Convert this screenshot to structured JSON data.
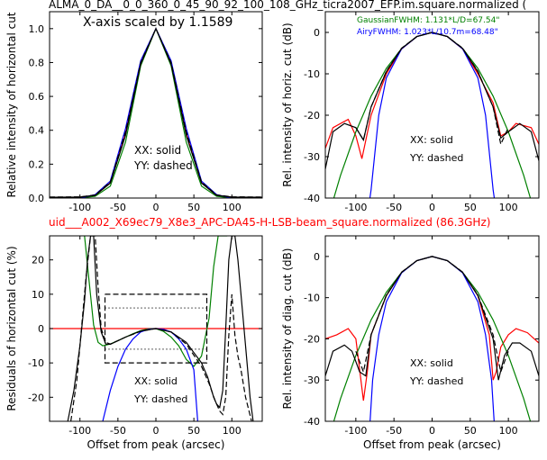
{
  "figure": {
    "title_top": "ALMA_0_DA__0_0_360_0_45_90_92_100_108_GHz_ticra2007_EFP.im.square.normalized (",
    "title_mid": "uid___A002_X69ec79_X8e3_APC-DA45-H-LSB-beam_square.normalized (86.3GHz)",
    "title_mid_color": "#ff0000"
  },
  "chart_data": [
    {
      "id": "p1",
      "type": "line",
      "ylabel": "Relative intensity of horizontal cut",
      "xlabel": "",
      "xlim": [
        -140,
        140
      ],
      "ylim": [
        0,
        1.1
      ],
      "xticks": [
        -100,
        -50,
        0,
        50,
        100
      ],
      "yticks": [
        0.0,
        0.2,
        0.4,
        0.6,
        0.8,
        1.0
      ],
      "annotations": [
        "X-axis scaled by 1.1589",
        "XX: solid",
        "YY: dashed"
      ],
      "series": [
        {
          "style": "model",
          "color": "#ff0000",
          "x": [
            -140,
            -100,
            -80,
            -60,
            -40,
            -20,
            0,
            20,
            40,
            60,
            80,
            100,
            140
          ],
          "y": [
            0.005,
            0.005,
            0.015,
            0.09,
            0.38,
            0.8,
            1.0,
            0.8,
            0.38,
            0.09,
            0.015,
            0.005,
            0.005
          ]
        },
        {
          "style": "gaussian",
          "color": "#008000",
          "x": [
            -140,
            -100,
            -80,
            -60,
            -40,
            -20,
            0,
            20,
            40,
            60,
            80,
            100,
            140
          ],
          "y": [
            0.0,
            0.001,
            0.01,
            0.07,
            0.33,
            0.78,
            1.0,
            0.78,
            0.33,
            0.07,
            0.01,
            0.001,
            0.0
          ]
        },
        {
          "style": "airy",
          "color": "#0000ff",
          "x": [
            -140,
            -100,
            -80,
            -60,
            -40,
            -20,
            0,
            20,
            40,
            60,
            80,
            100,
            140
          ],
          "y": [
            0.0,
            0.0,
            0.02,
            0.1,
            0.41,
            0.81,
            1.0,
            0.81,
            0.41,
            0.1,
            0.02,
            0.0,
            0.0
          ]
        },
        {
          "style": "XX",
          "color": "#000000",
          "x": [
            -140,
            -100,
            -80,
            -60,
            -40,
            -20,
            0,
            20,
            40,
            60,
            80,
            100,
            140
          ],
          "y": [
            0.005,
            0.006,
            0.016,
            0.088,
            0.37,
            0.79,
            1.0,
            0.79,
            0.37,
            0.088,
            0.016,
            0.006,
            0.005
          ]
        },
        {
          "style": "YY",
          "color": "#000000",
          "dashed": true,
          "x": [
            -140,
            -100,
            -80,
            -60,
            -40,
            -20,
            0,
            20,
            40,
            60,
            80,
            100,
            140
          ],
          "y": [
            0.006,
            0.007,
            0.018,
            0.095,
            0.39,
            0.8,
            1.0,
            0.8,
            0.39,
            0.095,
            0.018,
            0.007,
            0.006
          ]
        }
      ]
    },
    {
      "id": "p2",
      "type": "line",
      "ylabel": "Rel. intensity of horiz. cut (dB)",
      "xlabel": "",
      "xlim": [
        -140,
        140
      ],
      "ylim": [
        -40,
        5
      ],
      "xticks": [
        -100,
        -50,
        0,
        50,
        100
      ],
      "yticks": [
        -40,
        -30,
        -20,
        -10,
        0
      ],
      "annotations": [
        "XX: solid",
        "YY: dashed"
      ],
      "legend": [
        {
          "text": "GaussianFWHM: 1.131*L/D=67.54\"",
          "color": "#008000"
        },
        {
          "text": "AiryFWHM: 1.023*L/10.7m=68.48\"",
          "color": "#0000ff"
        }
      ],
      "series": [
        {
          "style": "model",
          "color": "#ff0000",
          "x": [
            -140,
            -130,
            -110,
            -100,
            -92,
            -80,
            -60,
            -40,
            -20,
            0,
            20,
            40,
            60,
            80,
            90,
            100,
            110,
            130,
            140
          ],
          "y": [
            -28,
            -23,
            -21,
            -25,
            -30.5,
            -20,
            -10,
            -4,
            -1,
            0,
            -1,
            -4,
            -10,
            -17,
            -25,
            -24,
            -22,
            -23,
            -27
          ]
        },
        {
          "style": "gaussian",
          "color": "#008000",
          "x": [
            -140,
            -120,
            -100,
            -80,
            -60,
            -40,
            -20,
            0,
            20,
            40,
            60,
            80,
            100,
            120,
            140
          ],
          "y": [
            -47,
            -34.5,
            -24,
            -15.4,
            -8.7,
            -3.9,
            -1,
            0,
            -1,
            -3.9,
            -8.7,
            -15.4,
            -24,
            -34.5,
            -47
          ]
        },
        {
          "style": "airy",
          "color": "#0000ff",
          "x": [
            -83,
            -80,
            -70,
            -60,
            -40,
            -20,
            0,
            20,
            40,
            60,
            70,
            80,
            83
          ],
          "y": [
            -42,
            -38,
            -20,
            -11,
            -4,
            -1,
            0,
            -1,
            -4,
            -11,
            -20,
            -38,
            -42
          ]
        },
        {
          "style": "XX",
          "color": "#000000",
          "x": [
            -140,
            -130,
            -115,
            -100,
            -90,
            -80,
            -60,
            -40,
            -20,
            0,
            20,
            40,
            60,
            80,
            90,
            100,
            115,
            130,
            140
          ],
          "y": [
            -33,
            -24,
            -22,
            -23,
            -26,
            -18,
            -9.5,
            -3.9,
            -1,
            0,
            -1,
            -3.9,
            -9.5,
            -18,
            -25.5,
            -24,
            -22,
            -24,
            -31
          ]
        },
        {
          "style": "YY",
          "color": "#000000",
          "dashed": true,
          "x": [
            -100,
            -90,
            -80,
            -60,
            -40,
            -20,
            0,
            20,
            40,
            60,
            80,
            90,
            100
          ],
          "y": [
            -23,
            -26,
            -18,
            -9.4,
            -3.8,
            -1,
            0,
            -1,
            -3.8,
            -9.4,
            -18,
            -27,
            -23
          ]
        }
      ]
    },
    {
      "id": "p3",
      "type": "line",
      "ylabel": "Residuals of horizontal cut (%)",
      "xlabel": "Offset from peak (arcsec)",
      "xlim": [
        -140,
        140
      ],
      "ylim": [
        -27,
        27
      ],
      "xticks": [
        -100,
        -50,
        0,
        50,
        100
      ],
      "yticks": [
        -20,
        -10,
        0,
        10,
        20
      ],
      "annotations": [
        "XX: solid",
        "YY: dashed"
      ],
      "series": [
        {
          "style": "zero",
          "color": "#ff0000",
          "x": [
            -140,
            140
          ],
          "y": [
            0,
            0
          ]
        },
        {
          "style": "gaussian",
          "color": "#008000",
          "x": [
            -94,
            -88,
            -82,
            -76,
            -70,
            -60,
            -50,
            -40,
            -30,
            -20,
            -10,
            0,
            10,
            20,
            30,
            40,
            50,
            60,
            70,
            76,
            82,
            88,
            94
          ],
          "y": [
            27,
            14,
            1,
            -4,
            -5,
            -4.5,
            -3.5,
            -2.5,
            -1.5,
            -0.6,
            -0.1,
            0,
            -0.8,
            -2.5,
            -5,
            -9,
            -11,
            -8,
            3,
            18,
            27,
            27,
            27
          ]
        },
        {
          "style": "airy",
          "color": "#0000ff",
          "x": [
            -70,
            -60,
            -50,
            -40,
            -30,
            -20,
            -10,
            0,
            10,
            20,
            30,
            40,
            50,
            55
          ],
          "y": [
            -27,
            -18,
            -11,
            -6,
            -3,
            -1,
            -0.2,
            0,
            -0.2,
            -1,
            -3,
            -6,
            -12,
            -27
          ]
        },
        {
          "style": "XX",
          "color": "#000000",
          "x": [
            -116,
            -108,
            -100,
            -94,
            -90,
            -86,
            -82,
            -78,
            -72,
            -66,
            -60,
            -40,
            -20,
            0,
            20,
            40,
            50,
            60,
            64,
            68,
            72,
            76,
            80,
            84,
            88,
            92,
            96,
            100,
            104,
            108,
            116,
            124,
            128
          ],
          "y": [
            -27,
            -18,
            -5,
            8,
            20,
            27,
            27,
            10,
            -1,
            -4.5,
            -4.6,
            -2.5,
            -0.7,
            0,
            -1,
            -4,
            -7,
            -10,
            -12,
            -14,
            -17,
            -20,
            -22,
            -23,
            -18,
            0,
            20,
            27,
            27,
            20,
            0,
            -20,
            -27
          ]
        },
        {
          "style": "YY",
          "color": "#000000",
          "dashed": true,
          "x": [
            -112,
            -104,
            -98,
            -92,
            -86,
            -80,
            -76,
            -72,
            -66,
            -60,
            -40,
            -20,
            0,
            20,
            40,
            60,
            70,
            78,
            84,
            88,
            92,
            96,
            100,
            104,
            108,
            112,
            118,
            126
          ],
          "y": [
            -27,
            -15,
            0,
            15,
            27,
            27,
            12,
            0,
            -4,
            -4.5,
            -2.5,
            -0.8,
            0,
            -1,
            -4.5,
            -11,
            -16,
            -21,
            -24,
            -25,
            -20,
            -2,
            10,
            -2,
            -8,
            -12,
            -20,
            -27
          ]
        },
        {
          "style": "box",
          "color": "#000000",
          "dashed": true,
          "x": [
            -67,
            67,
            67,
            -67,
            -67
          ],
          "y": [
            10,
            10,
            -10,
            -10,
            10
          ]
        },
        {
          "style": "box-inner",
          "color": "#000000",
          "dotted": true,
          "x": [
            -67,
            67
          ],
          "y": [
            6,
            6
          ]
        },
        {
          "style": "box-inner",
          "color": "#000000",
          "dotted": true,
          "x": [
            -67,
            67
          ],
          "y": [
            -6,
            -6
          ]
        }
      ]
    },
    {
      "id": "p4",
      "type": "line",
      "ylabel": "Rel. intensity of diag. cut (dB)",
      "xlabel": "Offset from peak (arcsec)",
      "xlim": [
        -140,
        140
      ],
      "ylim": [
        -40,
        5
      ],
      "xticks": [
        -100,
        -50,
        0,
        50,
        100
      ],
      "yticks": [
        -40,
        -30,
        -20,
        -10,
        0
      ],
      "annotations": [
        "XX: solid",
        "YY: dashed"
      ],
      "series": [
        {
          "style": "model",
          "color": "#ff0000",
          "x": [
            -140,
            -125,
            -110,
            -100,
            -90,
            -85,
            -80,
            -60,
            -40,
            -20,
            0,
            20,
            40,
            60,
            75,
            80,
            84,
            90,
            100,
            110,
            125,
            140
          ],
          "y": [
            -20,
            -19,
            -17.5,
            -20,
            -35,
            -28,
            -19,
            -9.5,
            -3.9,
            -1,
            0,
            -1,
            -3.9,
            -9.5,
            -19,
            -30,
            -28,
            -22,
            -19,
            -17.5,
            -18.5,
            -21
          ]
        },
        {
          "style": "gaussian",
          "color": "#008000",
          "x": [
            -140,
            -120,
            -100,
            -80,
            -60,
            -40,
            -20,
            0,
            20,
            40,
            60,
            80,
            100,
            120,
            140
          ],
          "y": [
            -47,
            -34.5,
            -24,
            -15.4,
            -8.7,
            -3.9,
            -1,
            0,
            -1,
            -3.9,
            -8.7,
            -15.4,
            -24,
            -34.5,
            -47
          ]
        },
        {
          "style": "airy",
          "color": "#0000ff",
          "x": [
            -82,
            -78,
            -70,
            -60,
            -40,
            -20,
            0,
            20,
            40,
            60,
            70,
            78,
            82
          ],
          "y": [
            -42,
            -30,
            -19,
            -11,
            -4,
            -1,
            0,
            -1,
            -4,
            -11,
            -19,
            -30,
            -42
          ]
        },
        {
          "style": "XX",
          "color": "#000000",
          "x": [
            -140,
            -130,
            -115,
            -105,
            -95,
            -87,
            -80,
            -60,
            -40,
            -20,
            0,
            20,
            40,
            60,
            80,
            87,
            95,
            105,
            115,
            130,
            140
          ],
          "y": [
            -29,
            -23,
            -21.5,
            -23,
            -28,
            -29,
            -19,
            -9.5,
            -3.9,
            -1,
            0,
            -1,
            -3.9,
            -9.5,
            -20,
            -30,
            -24,
            -21,
            -21,
            -23,
            -29
          ]
        },
        {
          "style": "YY",
          "color": "#000000",
          "dashed": true,
          "x": [
            -100,
            -90,
            -80,
            -60,
            -40,
            -20,
            0,
            20,
            40,
            60,
            80,
            90,
            100
          ],
          "y": [
            -23,
            -28,
            -19,
            -9.4,
            -3.8,
            -1,
            0,
            -1,
            -3.8,
            -9.4,
            -19,
            -28,
            -23
          ]
        }
      ]
    }
  ]
}
